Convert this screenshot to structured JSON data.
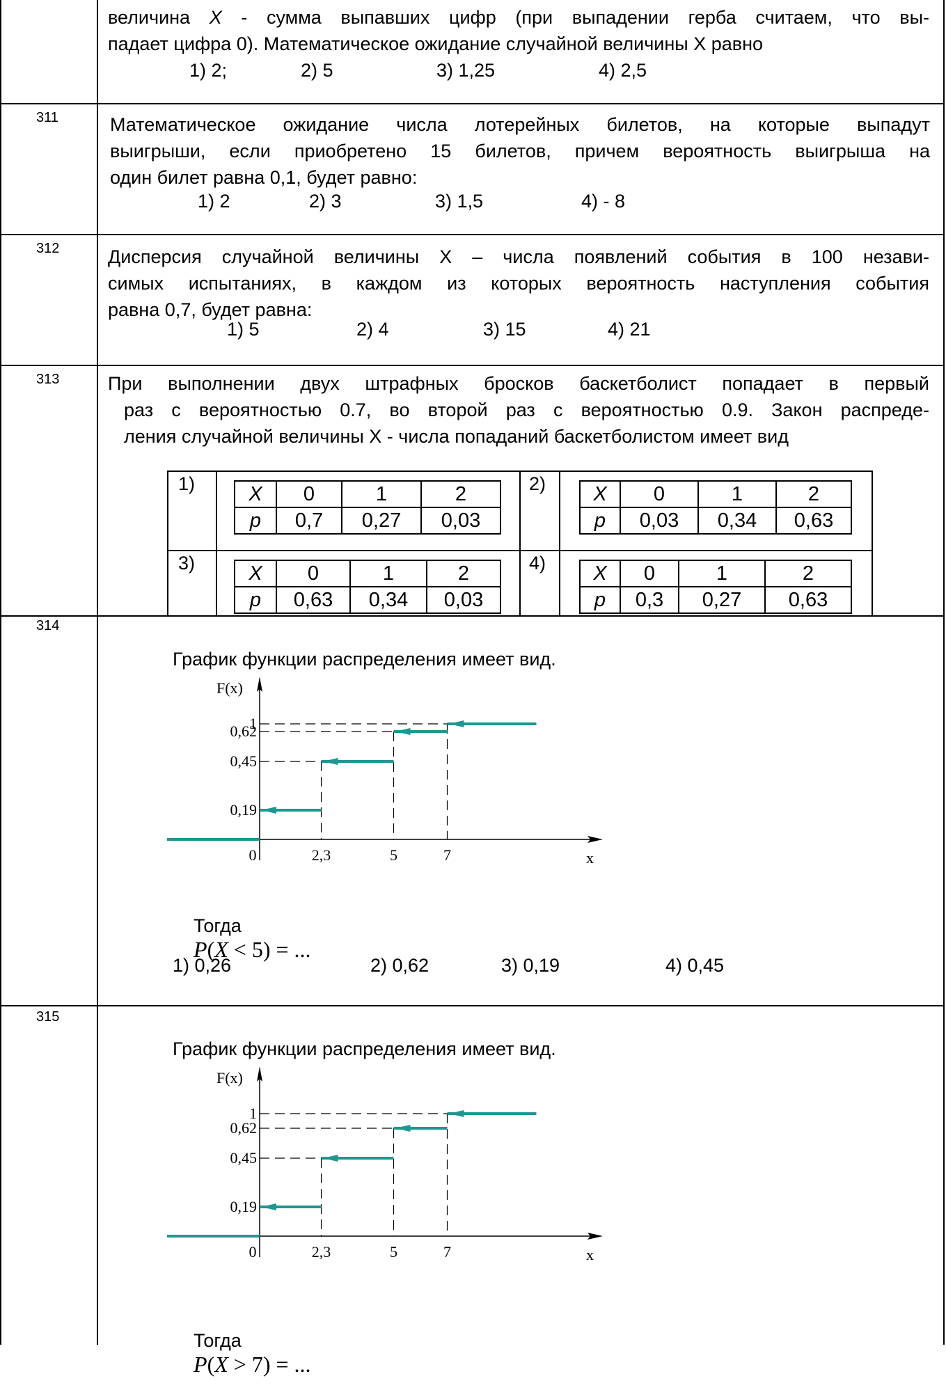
{
  "q310": {
    "lines": [
      [
        "величина ",
        "X",
        " - сумма выпавших цифр (при выпадении герба считаем, что вы-"
      ],
      "падает цифра 0). Математическое ожидание случайной величины Х равно"
    ],
    "options": [
      "1) 2;",
      "2) 5",
      "3) 1,25",
      "4) 2,5"
    ]
  },
  "q311": {
    "number": "311",
    "lines": [
      "Математическое ожидание числа лотерейных билетов, на которые выпадут",
      "выигрыши, если приобретено 15 билетов, причем вероятность выигрыша на",
      "один билет равна 0,1, будет равно:"
    ],
    "options": [
      "1)  2",
      "2) 3",
      "3) 1,5",
      "4)  - 8"
    ]
  },
  "q312": {
    "number": "312",
    "lines": [
      "Дисперсия случайной величины Х – числа появлений события в 100 незави-",
      "симых испытаниях, в каждом из которых вероятность наступления события",
      "равна 0,7, будет равна:"
    ],
    "options": [
      "1)  5",
      "2) 4",
      "3) 15",
      "4)  21"
    ]
  },
  "q313": {
    "number": "313",
    "lines": [
      "При выполнении двух штрафных бросков баскетболист попадает в первый",
      "раз с вероятностью 0.7, во второй раз с вероятностью 0.9. Закон распреде-",
      "ления случайной величины Х - числа попаданий баскетболистом имеет вид"
    ],
    "variants": [
      {
        "label": "1)",
        "header": [
          "X",
          "0",
          "1",
          "2"
        ],
        "row": [
          "p",
          "0,7",
          "0,27",
          "0,03"
        ]
      },
      {
        "label": "2)",
        "header": [
          "X",
          "0",
          "1",
          "2"
        ],
        "row": [
          "p",
          "0,03",
          "0,34",
          "0,63"
        ]
      },
      {
        "label": "3)",
        "header": [
          "X",
          "0",
          "1",
          "2"
        ],
        "row": [
          "p",
          "0,63",
          "0,34",
          "0,03"
        ]
      },
      {
        "label": "4)",
        "header": [
          "X",
          "0",
          "1",
          "2"
        ],
        "row": [
          "p",
          "0,3",
          "0,27",
          "0,63"
        ]
      }
    ]
  },
  "q314": {
    "number": "314",
    "caption": "График функции распределения имеет вид.",
    "then_label": "Тогда",
    "formula": {
      "left": "P",
      "open": "(",
      "var": "X",
      "op": " < ",
      "val": "5",
      "close": ")",
      "eq": " = ..."
    },
    "options": [
      "1) 0,26",
      "2) 0,62",
      "3) 0,19",
      "4) 0,45"
    ]
  },
  "q315": {
    "number": "315",
    "caption": "График функции распределения имеет вид.",
    "then_label": "Тогда",
    "formula": {
      "left": "P",
      "open": "(",
      "var": "X",
      "op": " > ",
      "val": "7",
      "close": ")",
      "eq": " = ..."
    }
  },
  "chart_data": [
    {
      "type": "line",
      "title": "",
      "xlabel": "x",
      "ylabel": "F(x)",
      "x_ticks": [
        "0",
        "2,3",
        "5",
        "7"
      ],
      "y_ticks": [
        "0,19",
        "0,45",
        "0,62",
        "1"
      ],
      "steps": [
        {
          "x_from": null,
          "x_to": 0,
          "y": 0
        },
        {
          "x_from": 0,
          "x_to": 2.3,
          "y": 0.19
        },
        {
          "x_from": 2.3,
          "x_to": 5,
          "y": 0.45
        },
        {
          "x_from": 5,
          "x_to": 7,
          "y": 0.62
        },
        {
          "x_from": 7,
          "x_to": null,
          "y": 1
        }
      ],
      "series_color": "#1f9690"
    },
    {
      "type": "line",
      "title": "",
      "xlabel": "x",
      "ylabel": "F(x)",
      "x_ticks": [
        "0",
        "2,3",
        "5",
        "7"
      ],
      "y_ticks": [
        "0,19",
        "0,45",
        "0,62",
        "1"
      ],
      "steps": [
        {
          "x_from": null,
          "x_to": 0,
          "y": 0
        },
        {
          "x_from": 0,
          "x_to": 2.3,
          "y": 0.19
        },
        {
          "x_from": 2.3,
          "x_to": 5,
          "y": 0.45
        },
        {
          "x_from": 5,
          "x_to": 7,
          "y": 0.62
        },
        {
          "x_from": 7,
          "x_to": null,
          "y": 1
        }
      ],
      "series_color": "#1f9690"
    }
  ]
}
